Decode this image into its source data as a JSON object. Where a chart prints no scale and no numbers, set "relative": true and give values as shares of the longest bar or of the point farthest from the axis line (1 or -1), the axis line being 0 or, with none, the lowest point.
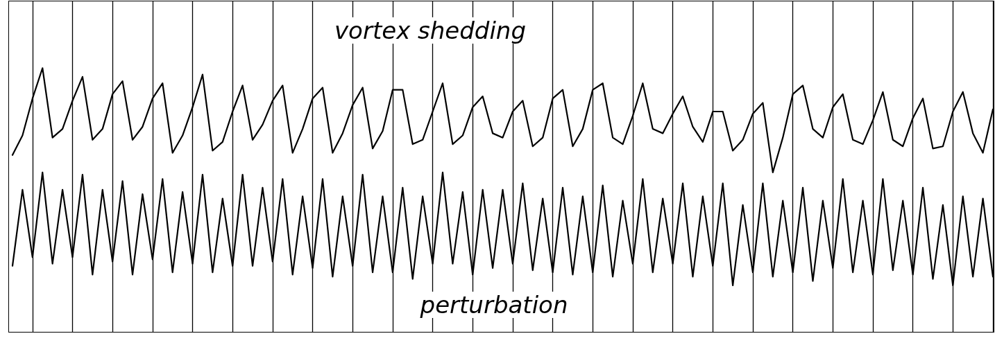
{
  "chart_data": {
    "type": "line",
    "relative": true,
    "legend": "bottom",
    "grid": "x",
    "marker": "none",
    "categories": [
      null,
      null,
      null,
      null,
      null,
      null,
      null,
      null,
      null,
      null,
      null,
      null,
      null,
      null,
      null,
      null,
      null,
      null,
      null,
      null,
      null,
      null,
      null,
      null,
      null,
      null,
      null,
      null,
      null,
      null,
      null,
      null,
      null,
      null,
      null,
      null,
      null,
      null,
      null,
      null,
      null,
      null,
      null,
      null,
      null,
      null,
      null,
      null,
      null,
      null,
      null,
      null,
      null,
      null,
      null,
      null,
      null,
      null,
      null,
      null,
      null,
      null,
      null,
      null,
      null,
      null,
      null,
      null,
      null,
      null,
      null,
      null,
      null,
      null,
      null,
      null,
      null,
      null,
      null,
      null,
      null,
      null,
      null,
      null,
      null,
      null,
      null,
      null,
      null,
      null,
      null,
      null,
      null,
      null,
      null,
      null,
      null,
      null,
      null
    ],
    "series": [
      {
        "name": "vortex shedding",
        "color": "#000000",
        "values": [
          0.6,
          0.69,
          0.86,
          1.0,
          0.68,
          0.72,
          0.85,
          0.96,
          0.67,
          0.72,
          0.88,
          0.94,
          0.67,
          0.73,
          0.86,
          0.93,
          0.61,
          0.69,
          0.82,
          0.97,
          0.62,
          0.66,
          0.8,
          0.92,
          0.67,
          0.74,
          0.85,
          0.92,
          0.61,
          0.72,
          0.86,
          0.91,
          0.61,
          0.7,
          0.83,
          0.91,
          0.63,
          0.71,
          0.9,
          0.9,
          0.65,
          0.67,
          0.8,
          0.93,
          0.65,
          0.69,
          0.82,
          0.87,
          0.7,
          0.68,
          0.8,
          0.85,
          0.64,
          0.68,
          0.86,
          0.9,
          0.64,
          0.72,
          0.9,
          0.93,
          0.68,
          0.65,
          0.78,
          0.93,
          0.72,
          0.7,
          0.79,
          0.87,
          0.73,
          0.66,
          0.8,
          0.8,
          0.62,
          0.67,
          0.79,
          0.84,
          0.52,
          0.68,
          0.88,
          0.92,
          0.72,
          0.68,
          0.82,
          0.88,
          0.67,
          0.65,
          0.76,
          0.89,
          0.67,
          0.64,
          0.77,
          0.86,
          0.63,
          0.64,
          0.8,
          0.89,
          0.7,
          0.61,
          0.81
        ]
      },
      {
        "name": "perturbation",
        "color": "#000000",
        "values": [
          0.09,
          0.44,
          0.13,
          0.52,
          0.1,
          0.44,
          0.13,
          0.51,
          0.05,
          0.44,
          0.11,
          0.48,
          0.05,
          0.42,
          0.12,
          0.49,
          0.06,
          0.43,
          0.1,
          0.51,
          0.06,
          0.4,
          0.09,
          0.51,
          0.09,
          0.45,
          0.11,
          0.49,
          0.05,
          0.41,
          0.08,
          0.49,
          0.04,
          0.41,
          0.09,
          0.51,
          0.06,
          0.41,
          0.06,
          0.45,
          0.03,
          0.41,
          0.1,
          0.52,
          0.1,
          0.43,
          0.05,
          0.44,
          0.08,
          0.44,
          0.1,
          0.47,
          0.07,
          0.4,
          0.06,
          0.45,
          0.05,
          0.41,
          0.06,
          0.46,
          0.04,
          0.39,
          0.1,
          0.49,
          0.06,
          0.4,
          0.1,
          0.47,
          0.04,
          0.41,
          0.09,
          0.47,
          0.0,
          0.37,
          0.06,
          0.47,
          0.04,
          0.39,
          0.06,
          0.45,
          0.02,
          0.39,
          0.08,
          0.49,
          0.06,
          0.39,
          0.05,
          0.49,
          0.07,
          0.39,
          0.05,
          0.45,
          0.03,
          0.37,
          0.0,
          0.41,
          0.04,
          0.4,
          0.04
        ]
      }
    ]
  }
}
